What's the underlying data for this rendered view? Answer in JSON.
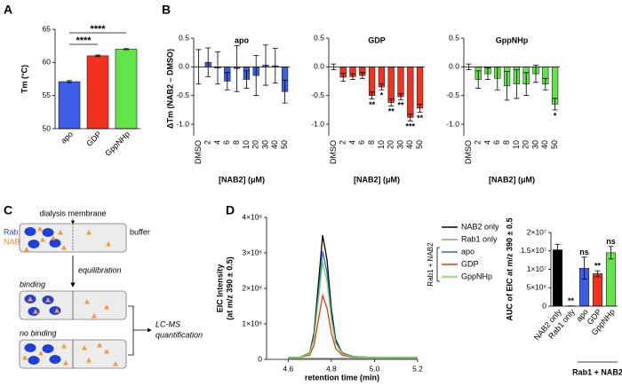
{
  "chart_data": [
    {
      "type": "bar",
      "panel_label": "A",
      "y_label": "Tm (°C)",
      "categories": [
        "apo",
        "GDP",
        "GppNHp"
      ],
      "values": [
        57.1,
        61.0,
        62.0
      ],
      "errors": [
        0.15,
        0.12,
        0.08
      ],
      "colors": [
        "#3b5de8",
        "#f2311f",
        "#63e54a"
      ],
      "ylim": [
        50,
        65
      ],
      "yticks": [
        50,
        55,
        60,
        65
      ],
      "comparisons": [
        {
          "pair": [
            "apo",
            "GDP"
          ],
          "label": "****"
        },
        {
          "pair": [
            "apo",
            "GppNHp"
          ],
          "label": "****"
        }
      ]
    },
    {
      "type": "bar",
      "panel_label": "B",
      "title": "apo",
      "y_label": "ΔTm (NAB2 – DMSO)",
      "x_label": "[NAB2] (μM)",
      "categories": [
        "DMSO",
        "2",
        "4",
        "6",
        "8",
        "10",
        "20",
        "30",
        "40",
        "50"
      ],
      "values": [
        0,
        0.08,
        -0.02,
        -0.25,
        -0.03,
        -0.22,
        -0.15,
        0.03,
        0.02,
        -0.43
      ],
      "errors": [
        0.3,
        0.25,
        0.28,
        0.15,
        0.4,
        0.15,
        0.35,
        0.35,
        0.3,
        0.2
      ],
      "color": "#3b5de8",
      "ylim": [
        -1.2,
        0.5
      ],
      "yticks": [
        0.5,
        {
          "value": 0,
          "label": "0.0"
        },
        -0.5,
        {
          "value": -1,
          "label": "-1.0"
        }
      ]
    },
    {
      "type": "bar",
      "title": "GDP",
      "x_label": "[NAB2] (μM)",
      "categories": [
        "DMSO",
        "2",
        "4",
        "6",
        "8",
        "10",
        "20",
        "30",
        "40",
        "50"
      ],
      "values": [
        0,
        -0.18,
        -0.17,
        -0.15,
        -0.5,
        -0.35,
        -0.62,
        -0.52,
        -0.88,
        -0.72
      ],
      "errors": [
        0.05,
        0.07,
        0.05,
        0.05,
        0.06,
        0.05,
        0.06,
        0.05,
        0.06,
        0.07
      ],
      "significance": [
        null,
        null,
        null,
        null,
        "**",
        "*",
        "**",
        "**",
        "***",
        "**"
      ],
      "color": "#f2311f",
      "ylim": [
        -1.2,
        0.5
      ],
      "yticks": [
        0.5,
        {
          "value": 0,
          "label": "0.0"
        },
        -0.5,
        {
          "value": -1,
          "label": "-1.0"
        }
      ]
    },
    {
      "type": "bar",
      "title": "GppNHp",
      "x_label": "[NAB2] (μM)",
      "categories": [
        "DMSO",
        "2",
        "4",
        "6",
        "8",
        "10",
        "20",
        "30",
        "40",
        "50"
      ],
      "values": [
        0,
        -0.22,
        -0.12,
        -0.2,
        -0.33,
        -0.3,
        -0.3,
        -0.12,
        -0.3,
        -0.65
      ],
      "errors": [
        0.05,
        0.15,
        0.1,
        0.2,
        0.25,
        0.25,
        0.2,
        0.15,
        0.1,
        0.1
      ],
      "significance": [
        null,
        null,
        null,
        null,
        null,
        null,
        null,
        null,
        null,
        "*"
      ],
      "color": "#63e54a",
      "ylim": [
        -1.2,
        0.5
      ],
      "yticks": [
        0.5,
        {
          "value": 0,
          "label": "0.0"
        },
        -0.5,
        {
          "value": -1,
          "label": "-1.0"
        }
      ]
    },
    {
      "type": "line",
      "panel_label": "D",
      "y_label": [
        "EIC Intensity",
        "(at m/z 390 ± 0.5)"
      ],
      "x_label": "retention time (min)",
      "x": [
        4.6,
        4.65,
        4.7,
        4.72,
        4.74,
        4.76,
        4.78,
        4.8,
        4.82,
        4.85,
        4.9,
        5.0,
        5.1,
        5.2
      ],
      "series": [
        {
          "name": "NAB2 only",
          "color": "#000000",
          "values": [
            50000,
            50000,
            180000,
            740000,
            2120000,
            3500000,
            2810000,
            1420000,
            560000,
            180000,
            80000,
            50000,
            50000,
            50000
          ]
        },
        {
          "name": "Rab1 only",
          "color": "#9a9a9a",
          "values": [
            30000,
            30000,
            30000,
            30000,
            30000,
            30000,
            30000,
            30000,
            30000,
            30000,
            30000,
            30000,
            30000,
            30000
          ]
        },
        {
          "name": "apo",
          "color": "#3b5de8",
          "values": [
            50000,
            50000,
            170000,
            650000,
            1850000,
            3050000,
            2450000,
            1250000,
            500000,
            170000,
            80000,
            50000,
            50000,
            50000
          ]
        },
        {
          "name": "GDP",
          "color": "#f2311f",
          "values": [
            50000,
            50000,
            120000,
            400000,
            1110000,
            1800000,
            1450000,
            750000,
            310000,
            120000,
            60000,
            50000,
            50000,
            50000
          ]
        },
        {
          "name": "GppNHp",
          "color": "#63e54a",
          "values": [
            50000,
            50000,
            160000,
            590000,
            1670000,
            2750000,
            2210000,
            1120000,
            450000,
            160000,
            70000,
            50000,
            50000,
            50000
          ]
        }
      ],
      "legend_group_label": "Rab1 + NAB2",
      "xlim": [
        4.5,
        5.2
      ],
      "xticks": [
        4.6,
        4.8,
        {
          "value": 5,
          "label": "5.0"
        },
        5.2
      ],
      "ylim": [
        0,
        4000000
      ],
      "yticks": [
        0,
        {
          "value": 1000000,
          "label": "1×10⁶"
        },
        {
          "value": 2000000,
          "label": "2×10⁶"
        },
        {
          "value": 3000000,
          "label": "3×10⁶"
        },
        {
          "value": 4000000,
          "label": "4×10⁶"
        }
      ]
    },
    {
      "type": "bar",
      "y_label": "AUC of EIC at m/z 390 ± 0.5",
      "categories": [
        "NAB2 only",
        "Rab1 only",
        "apo",
        "GDP",
        "GppNHp"
      ],
      "values": [
        15300000,
        50000,
        10300000,
        8800000,
        14500000
      ],
      "errors": [
        1500000,
        0,
        3000000,
        800000,
        1700000
      ],
      "significance": [
        null,
        "**",
        "ns",
        "**",
        "ns"
      ],
      "colors": [
        "#000000",
        "#000000",
        "#3b5de8",
        "#f2311f",
        "#63e54a"
      ],
      "group_label": "Rab1 + NAB2",
      "ylim": [
        0,
        20000000
      ],
      "yticks": [
        0,
        {
          "value": 5000000,
          "label": "5×10⁶"
        },
        {
          "value": 10000000,
          "label": "1×10⁷"
        },
        {
          "value": 15000000,
          "label": "1.5×10⁷"
        },
        {
          "value": 20000000,
          "label": "2×10⁷"
        }
      ]
    }
  ],
  "diagram": {
    "panel_label": "C",
    "membrane": "dialysis membrane",
    "protein": "Rab1",
    "ligand": "NAB2",
    "buffer": "buffer",
    "step": "equilibration",
    "outcomes": [
      "binding",
      "no binding"
    ],
    "readout": [
      "LC-MS",
      "quantification"
    ]
  }
}
